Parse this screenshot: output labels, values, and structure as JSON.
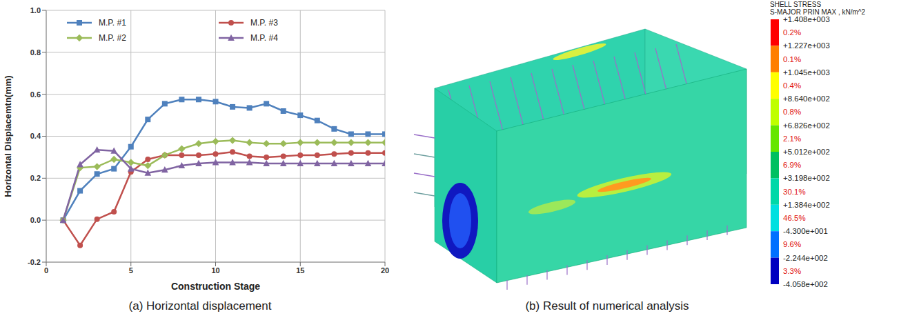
{
  "chart_data": {
    "type": "line",
    "caption": "(a) Horizontal displacement",
    "x_label": "Construction Stage",
    "y_label": "Horizontal Displacemtn(mm)",
    "x": [
      1,
      2,
      3,
      4,
      5,
      6,
      7,
      8,
      9,
      10,
      11,
      12,
      13,
      14,
      15,
      16,
      17,
      18,
      19,
      20
    ],
    "series": [
      {
        "name": "M.P. #1",
        "color": "#4f81bd",
        "marker": "square",
        "values": [
          0,
          0.14,
          0.22,
          0.245,
          0.35,
          0.48,
          0.555,
          0.575,
          0.575,
          0.565,
          0.54,
          0.535,
          0.555,
          0.52,
          0.5,
          0.475,
          0.435,
          0.41,
          0.41,
          0.41
        ]
      },
      {
        "name": "M.P. #3",
        "color": "#c0504d",
        "marker": "circle",
        "values": [
          0,
          -0.12,
          0.005,
          0.04,
          0.23,
          0.29,
          0.31,
          0.31,
          0.31,
          0.315,
          0.325,
          0.305,
          0.3,
          0.305,
          0.31,
          0.31,
          0.315,
          0.32,
          0.32,
          0.32
        ]
      },
      {
        "name": "M.P. #2",
        "color": "#9bbb59",
        "marker": "diamond",
        "values": [
          0,
          0.25,
          0.255,
          0.29,
          0.275,
          0.26,
          0.31,
          0.34,
          0.365,
          0.375,
          0.38,
          0.37,
          0.365,
          0.365,
          0.37,
          0.37,
          0.37,
          0.37,
          0.37,
          0.37
        ]
      },
      {
        "name": "M.P. #4",
        "color": "#8064a2",
        "marker": "triangle",
        "values": [
          0,
          0.265,
          0.335,
          0.33,
          0.245,
          0.225,
          0.24,
          0.26,
          0.27,
          0.275,
          0.275,
          0.275,
          0.27,
          0.27,
          0.27,
          0.27,
          0.27,
          0.27,
          0.27,
          0.27
        ]
      }
    ],
    "xlim": [
      0,
      20
    ],
    "xticks": [
      0,
      5,
      10,
      15,
      20
    ],
    "ylim": [
      -0.2,
      1.0
    ],
    "yticks": [
      -0.2,
      {
        "value": 0,
        "label": "0.0"
      },
      0.2,
      0.4,
      0.6,
      0.8,
      {
        "value": 1,
        "label": "1.0"
      }
    ],
    "grid": true,
    "legend": "top"
  },
  "figure_b": {
    "caption": "(b) Result of numerical analysis",
    "color_bar": {
      "title": [
        "SHELL STRESS",
        "S-MAJOR PRIN MAX , kN/m^2"
      ],
      "ticks": [
        {
          "value": 1408,
          "label": "+1.408e+003"
        },
        {
          "value": 1227,
          "label": "+1.227e+003"
        },
        {
          "value": 1045,
          "label": "+1.045e+003"
        },
        {
          "value": 864,
          "label": "+8.640e+002"
        },
        {
          "value": 682.6,
          "label": "+6.826e+002"
        },
        {
          "value": 501.2,
          "label": "+5.012e+002"
        },
        {
          "value": 319.8,
          "label": "+3.198e+002"
        },
        {
          "value": 138.4,
          "label": "+1.384e+002"
        },
        {
          "value": -43,
          "label": "-4.300e+001"
        },
        {
          "value": -224.4,
          "label": "-2.244e+002"
        },
        {
          "value": -405.8,
          "label": "-4.058e+002"
        }
      ],
      "values": [
        0.2,
        0.1,
        0.4,
        0.8,
        2.1,
        6.9,
        30.1,
        46.5,
        9.6,
        3.3
      ],
      "value_labels": [
        "0.2%",
        "0.1%",
        "0.4%",
        "0.8%",
        "2.1%",
        "6.9%",
        "30.1%",
        "46.5%",
        "9.6%",
        "3.3%"
      ],
      "colors": [
        "#ff0000",
        "#ff7f00",
        "#ffff00",
        "#bfff00",
        "#66e600",
        "#00c060",
        "#00d8a8",
        "#00e0e0",
        "#0070ff",
        "#0000c0"
      ]
    }
  }
}
